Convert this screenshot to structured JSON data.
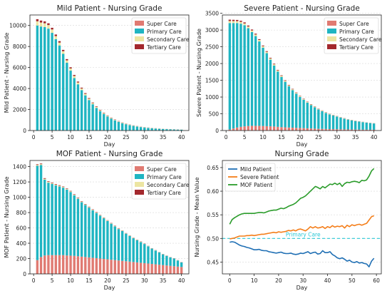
{
  "chart_data": [
    {
      "type": "bar",
      "title": "Mild Patient - Nursing Grade",
      "xlabel": "Day",
      "ylabel": "Mild Patient - Nursing Grade",
      "xlim": [
        -1,
        42
      ],
      "ylim": [
        0,
        11000
      ],
      "xticks": [
        0,
        5,
        10,
        15,
        20,
        25,
        30,
        35,
        40
      ],
      "yticks": [
        0,
        2000,
        4000,
        6000,
        8000,
        10000
      ],
      "legend_position": "top-right",
      "grid": true,
      "categories": [
        1,
        2,
        3,
        4,
        5,
        6,
        7,
        8,
        9,
        10,
        11,
        12,
        13,
        14,
        15,
        16,
        17,
        18,
        19,
        20,
        21,
        22,
        23,
        24,
        25,
        26,
        27,
        28,
        29,
        30,
        31,
        32,
        33,
        34,
        35,
        36,
        37,
        38,
        39,
        40
      ],
      "series": [
        {
          "name": "Super Care",
          "color": "#e07a72",
          "values": [
            0,
            0,
            0,
            0,
            0,
            0,
            0,
            0,
            0,
            0,
            0,
            0,
            0,
            0,
            0,
            0,
            0,
            0,
            0,
            0,
            0,
            0,
            0,
            0,
            0,
            0,
            0,
            0,
            0,
            0,
            0,
            0,
            0,
            0,
            0,
            0,
            0,
            0,
            0,
            0
          ]
        },
        {
          "name": "Primary Care",
          "color": "#1fb5c2",
          "values": [
            10000,
            9900,
            9850,
            9700,
            9300,
            8700,
            8100,
            7300,
            6450,
            5700,
            5000,
            4400,
            3850,
            3350,
            2900,
            2500,
            2150,
            1840,
            1580,
            1340,
            1140,
            970,
            830,
            700,
            600,
            510,
            440,
            380,
            330,
            290,
            250,
            220,
            190,
            165,
            145,
            130,
            115,
            100,
            90,
            80
          ]
        },
        {
          "name": "Secondary Care",
          "color": "#ece5a2",
          "values": [
            400,
            380,
            360,
            340,
            320,
            290,
            270,
            250,
            230,
            210,
            190,
            170,
            150,
            140,
            125,
            110,
            95,
            85,
            75,
            65,
            58,
            52,
            46,
            41,
            37,
            33,
            30,
            27,
            24,
            22,
            20,
            18,
            16,
            14,
            13,
            12,
            11,
            10,
            9,
            8
          ]
        },
        {
          "name": "Tertiary Care",
          "color": "#a3282d",
          "values": [
            200,
            190,
            180,
            170,
            160,
            150,
            140,
            130,
            120,
            110,
            100,
            90,
            80,
            72,
            64,
            57,
            50,
            45,
            40,
            35,
            31,
            28,
            25,
            22,
            20,
            18,
            16,
            14,
            13,
            12,
            11,
            10,
            9,
            8,
            7,
            6,
            6,
            5,
            5,
            4
          ]
        }
      ]
    },
    {
      "type": "bar",
      "title": "Severe Patient - Nursing Grade",
      "xlabel": "Day",
      "ylabel": "Severe Patient - Nursing Grade",
      "xlim": [
        -1,
        42
      ],
      "ylim": [
        0,
        3450
      ],
      "xticks": [
        0,
        5,
        10,
        15,
        20,
        25,
        30,
        35,
        40
      ],
      "yticks": [
        0,
        500,
        1000,
        1500,
        2000,
        2500,
        3000,
        3500
      ],
      "legend_position": "top-right",
      "grid": true,
      "categories": [
        1,
        2,
        3,
        4,
        5,
        6,
        7,
        8,
        9,
        10,
        11,
        12,
        13,
        14,
        15,
        16,
        17,
        18,
        19,
        20,
        21,
        22,
        23,
        24,
        25,
        26,
        27,
        28,
        29,
        30,
        31,
        32,
        33,
        34,
        35,
        36,
        37,
        38,
        39,
        40
      ],
      "series": [
        {
          "name": "Super Care",
          "color": "#e07a72",
          "values": [
            30,
            60,
            90,
            110,
            125,
            135,
            140,
            140,
            140,
            135,
            130,
            125,
            120,
            110,
            100,
            95,
            90,
            85,
            80,
            75,
            70,
            65,
            60,
            55,
            50,
            48,
            45,
            42,
            40,
            38,
            36,
            34,
            32,
            30,
            28,
            27,
            26,
            25,
            24,
            23
          ]
        },
        {
          "name": "Primary Care",
          "color": "#1fb5c2",
          "values": [
            3180,
            3150,
            3120,
            3080,
            3020,
            2920,
            2800,
            2680,
            2520,
            2340,
            2180,
            1990,
            1820,
            1650,
            1500,
            1360,
            1230,
            1120,
            1020,
            930,
            850,
            770,
            700,
            640,
            580,
            530,
            480,
            440,
            410,
            380,
            350,
            320,
            295,
            275,
            255,
            240,
            225,
            210,
            198,
            188
          ]
        },
        {
          "name": "Secondary Care",
          "color": "#ece5a2",
          "values": [
            60,
            58,
            56,
            54,
            52,
            50,
            48,
            46,
            44,
            42,
            40,
            38,
            36,
            34,
            32,
            30,
            28,
            26,
            24,
            22,
            20,
            19,
            18,
            17,
            16,
            15,
            14,
            13,
            12,
            11,
            10,
            9,
            9,
            8,
            8,
            7,
            7,
            6,
            6,
            5
          ]
        },
        {
          "name": "Tertiary Care",
          "color": "#a3282d",
          "values": [
            40,
            38,
            36,
            34,
            32,
            30,
            28,
            26,
            24,
            22,
            20,
            19,
            18,
            17,
            16,
            15,
            14,
            13,
            12,
            11,
            10,
            9,
            9,
            8,
            8,
            7,
            7,
            6,
            6,
            5,
            5,
            5,
            4,
            4,
            4,
            3,
            3,
            3,
            3,
            3
          ]
        }
      ]
    },
    {
      "type": "bar",
      "title": "MOF Patient - Nursing Grade",
      "xlabel": "Day",
      "ylabel": "MOF Patient - Nursing Grade",
      "xlim": [
        -1,
        42
      ],
      "ylim": [
        0,
        1480
      ],
      "xticks": [
        0,
        5,
        10,
        15,
        20,
        25,
        30,
        35,
        40
      ],
      "yticks": [
        0,
        200,
        400,
        600,
        800,
        1000,
        1200,
        1400
      ],
      "legend_position": "top-right",
      "grid": true,
      "categories": [
        1,
        2,
        3,
        4,
        5,
        6,
        7,
        8,
        9,
        10,
        11,
        12,
        13,
        14,
        15,
        16,
        17,
        18,
        19,
        20,
        21,
        22,
        23,
        24,
        25,
        26,
        27,
        28,
        29,
        30,
        31,
        32,
        33,
        34,
        35,
        36,
        37,
        38,
        39,
        40
      ],
      "series": [
        {
          "name": "Super Care",
          "color": "#e07a72",
          "values": [
            180,
            220,
            240,
            245,
            245,
            245,
            245,
            245,
            240,
            238,
            235,
            230,
            225,
            220,
            215,
            210,
            205,
            200,
            195,
            190,
            185,
            180,
            175,
            170,
            165,
            160,
            155,
            150,
            145,
            140,
            135,
            130,
            125,
            120,
            115,
            110,
            105,
            100,
            95,
            90
          ]
        },
        {
          "name": "Primary Care",
          "color": "#1fb5c2",
          "values": [
            1230,
            1200,
            990,
            945,
            930,
            910,
            895,
            880,
            860,
            830,
            790,
            750,
            710,
            680,
            650,
            620,
            590,
            560,
            530,
            500,
            470,
            440,
            410,
            390,
            360,
            335,
            310,
            290,
            270,
            250,
            225,
            200,
            180,
            160,
            140,
            125,
            110,
            100,
            80,
            60
          ]
        },
        {
          "name": "Secondary Care",
          "color": "#ece5a2",
          "values": [
            12,
            12,
            11,
            11,
            10,
            10,
            10,
            9,
            9,
            9,
            8,
            8,
            8,
            7,
            7,
            7,
            6,
            6,
            6,
            6,
            5,
            5,
            5,
            5,
            4,
            4,
            4,
            4,
            4,
            3,
            3,
            3,
            3,
            3,
            3,
            2,
            2,
            2,
            2,
            2
          ]
        },
        {
          "name": "Tertiary Care",
          "color": "#a3282d",
          "values": [
            8,
            8,
            8,
            7,
            7,
            7,
            7,
            6,
            6,
            6,
            6,
            6,
            5,
            5,
            5,
            5,
            5,
            4,
            4,
            4,
            4,
            4,
            4,
            3,
            3,
            3,
            3,
            3,
            3,
            3,
            2,
            2,
            2,
            2,
            2,
            2,
            2,
            2,
            2,
            2
          ]
        }
      ]
    },
    {
      "type": "line",
      "title": "Nursing Grade",
      "xlabel": "Day",
      "ylabel": "Nursing Grade - Mean Value",
      "xlim": [
        -3,
        62
      ],
      "ylim": [
        0.425,
        0.665
      ],
      "xticks": [
        0,
        10,
        20,
        30,
        40,
        50,
        60
      ],
      "yticks": [
        0.45,
        0.5,
        0.55,
        0.6,
        0.65
      ],
      "legend_position": "top-left",
      "grid": true,
      "reference_line": {
        "y": 0.5,
        "label": "Primary Care",
        "color": "#29c7d6"
      },
      "x": [
        0,
        1,
        2,
        3,
        4,
        5,
        6,
        7,
        8,
        9,
        10,
        11,
        12,
        13,
        14,
        15,
        16,
        17,
        18,
        19,
        20,
        21,
        22,
        23,
        24,
        25,
        26,
        27,
        28,
        29,
        30,
        31,
        32,
        33,
        34,
        35,
        36,
        37,
        38,
        39,
        40,
        41,
        42,
        43,
        44,
        45,
        46,
        47,
        48,
        49,
        50,
        51,
        52,
        53,
        54,
        55,
        56,
        57,
        58,
        59
      ],
      "series": [
        {
          "name": "Mild Patient",
          "color": "#1f6fb4",
          "values": [
            0.492,
            0.493,
            0.492,
            0.489,
            0.486,
            0.484,
            0.483,
            0.481,
            0.48,
            0.478,
            0.476,
            0.476,
            0.477,
            0.475,
            0.474,
            0.474,
            0.472,
            0.471,
            0.47,
            0.469,
            0.47,
            0.471,
            0.469,
            0.468,
            0.468,
            0.469,
            0.467,
            0.466,
            0.467,
            0.469,
            0.468,
            0.47,
            0.472,
            0.468,
            0.47,
            0.471,
            0.467,
            0.468,
            0.474,
            0.47,
            0.47,
            0.472,
            0.466,
            0.463,
            0.459,
            0.457,
            0.459,
            0.456,
            0.452,
            0.454,
            0.45,
            0.449,
            0.451,
            0.448,
            0.449,
            0.447,
            0.446,
            0.44,
            0.452,
            0.458
          ]
        },
        {
          "name": "Severe Patient",
          "color": "#f47e1a",
          "values": [
            0.499,
            0.5,
            0.501,
            0.503,
            0.505,
            0.505,
            0.505,
            0.506,
            0.506,
            0.507,
            0.506,
            0.507,
            0.508,
            0.509,
            0.509,
            0.51,
            0.511,
            0.512,
            0.513,
            0.512,
            0.514,
            0.513,
            0.514,
            0.515,
            0.517,
            0.516,
            0.518,
            0.516,
            0.519,
            0.52,
            0.518,
            0.516,
            0.52,
            0.525,
            0.522,
            0.525,
            0.522,
            0.523,
            0.525,
            0.521,
            0.525,
            0.523,
            0.527,
            0.524,
            0.526,
            0.525,
            0.527,
            0.522,
            0.528,
            0.525,
            0.529,
            0.527,
            0.529,
            0.53,
            0.528,
            0.53,
            0.532,
            0.539,
            0.546,
            0.548
          ]
        },
        {
          "name": "MOF Patient",
          "color": "#2b9c2b",
          "values": [
            0.53,
            0.54,
            0.544,
            0.547,
            0.55,
            0.552,
            0.553,
            0.553,
            0.553,
            0.553,
            0.553,
            0.554,
            0.555,
            0.555,
            0.554,
            0.556,
            0.558,
            0.559,
            0.56,
            0.56,
            0.562,
            0.564,
            0.563,
            0.565,
            0.568,
            0.57,
            0.572,
            0.575,
            0.58,
            0.585,
            0.587,
            0.59,
            0.595,
            0.6,
            0.605,
            0.61,
            0.608,
            0.605,
            0.61,
            0.607,
            0.611,
            0.615,
            0.614,
            0.617,
            0.614,
            0.617,
            0.61,
            0.616,
            0.619,
            0.618,
            0.62,
            0.621,
            0.62,
            0.618,
            0.623,
            0.622,
            0.624,
            0.632,
            0.643,
            0.648
          ]
        }
      ]
    }
  ]
}
